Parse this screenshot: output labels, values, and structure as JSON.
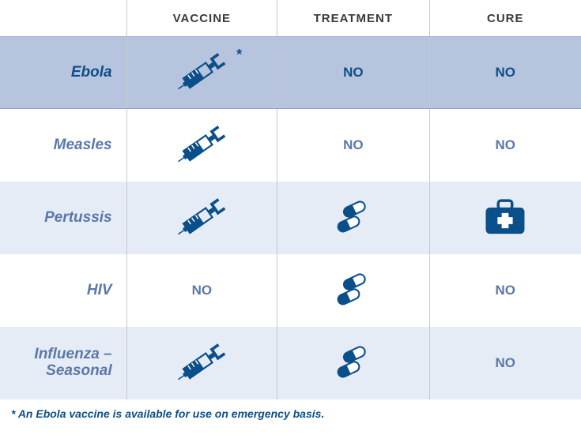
{
  "colors": {
    "dark_blue": "#0b4f8a",
    "mid_blue": "#5a78aa",
    "header_text": "#3a3a3a",
    "row_highlight": "#b7c4dd",
    "row_highlight_border": "#8fa4c9",
    "row_alt": "#e6ecf5",
    "row_white": "#ffffff",
    "divider": "#c9c9c9",
    "icon_fill": "#0b4f8a",
    "icon_light": "#ffffff",
    "footnote": "#0b4f8a"
  },
  "headers": {
    "vaccine": "VACCINE",
    "treatment": "TREATMENT",
    "cure": "CURE"
  },
  "rows": [
    {
      "name": "Ebola",
      "vaccine": "syringe",
      "vaccine_note": "*",
      "treatment": "NO",
      "cure": "NO",
      "bg": "highlight",
      "text_color": "dark_blue"
    },
    {
      "name": "Measles",
      "vaccine": "syringe",
      "treatment": "NO",
      "cure": "NO",
      "bg": "white",
      "text_color": "mid_blue"
    },
    {
      "name": "Pertussis",
      "vaccine": "syringe",
      "treatment": "pills",
      "cure": "medkit",
      "bg": "alt",
      "text_color": "mid_blue"
    },
    {
      "name": "HIV",
      "vaccine": "NO",
      "treatment": "pills",
      "cure": "NO",
      "bg": "white",
      "text_color": "mid_blue"
    },
    {
      "name": "Influenza – Seasonal",
      "vaccine": "syringe",
      "treatment": "pills",
      "cure": "NO",
      "bg": "alt",
      "text_color": "mid_blue"
    }
  ],
  "footnote": "* An Ebola vaccine is available for use on emergency basis.",
  "no_label": "NO"
}
